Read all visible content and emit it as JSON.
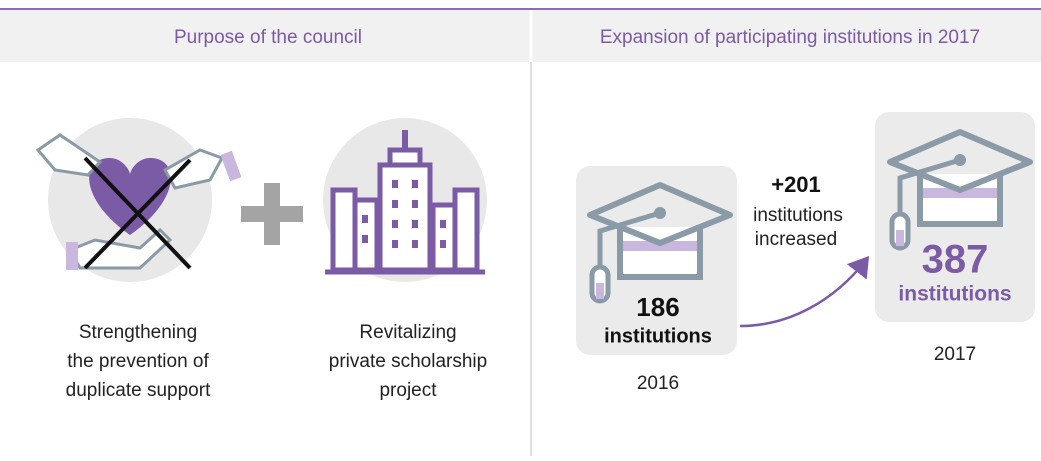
{
  "header": {
    "left_title": "Purpose of the council",
    "right_title": "Expansion of participating institutions in 2017"
  },
  "purpose": {
    "items": [
      {
        "caption": [
          "Strengthening",
          "the prevention of",
          "duplicate support"
        ]
      },
      {
        "caption": [
          "Revitalizing",
          "private scholarship",
          "project"
        ]
      }
    ]
  },
  "expansion": {
    "before": {
      "count": 186,
      "unit": "institutions",
      "year": "2016"
    },
    "change": {
      "amount": "+201",
      "text": [
        "institutions",
        "increased"
      ]
    },
    "after": {
      "count": 387,
      "unit": "institutions",
      "year": "2017"
    }
  }
}
